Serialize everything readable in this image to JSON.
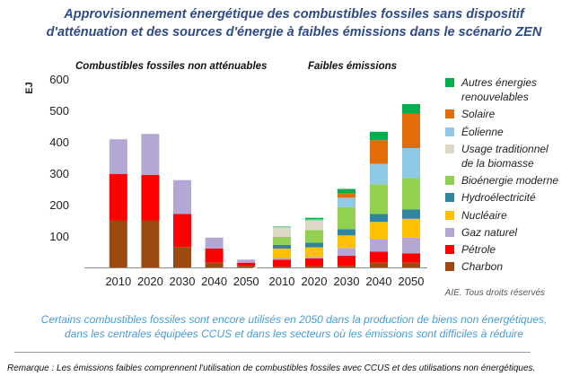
{
  "title": "Approvisionnement énergétique des combustibles fossiles sans dispositif d'atténuation et des sources d'énergie à faibles émissions dans le scénario ZEN",
  "source": "AIE. Tous droits réservés",
  "caption": "Certains combustibles fossiles sont encore utilisés en 2050 dans la production de biens non énergétiques, dans les centrales équipées CCUS et dans les secteurs où les émissions sont difficiles à réduire",
  "note": "Remarque : Les émissions faibles comprennent l'utilisation de combustibles fossiles avec CCUS et des utilisations non énergétiques.",
  "legend": [
    {
      "label": "Autres énergies renouvelables",
      "color": "#00b050"
    },
    {
      "label": "Solaire",
      "color": "#e36c0a"
    },
    {
      "label": "Éolienne",
      "color": "#8ecae6"
    },
    {
      "label": "Usage traditionnel de la biomasse",
      "color": "#ddd9c4"
    },
    {
      "label": "Bioénergie moderne",
      "color": "#92d050"
    },
    {
      "label": "Hydroélectricité",
      "color": "#31859c"
    },
    {
      "label": "Nucléaire",
      "color": "#ffc000"
    },
    {
      "label": "Gaz naturel",
      "color": "#b4a7d6"
    },
    {
      "label": "Pétrole",
      "color": "#ff0000"
    },
    {
      "label": "Charbon",
      "color": "#9c4a10"
    }
  ],
  "chart_data": {
    "type": "bar",
    "stacked": true,
    "ylabel": "EJ",
    "ylim": [
      0,
      600
    ],
    "yticks": [
      100,
      200,
      300,
      400,
      500,
      600
    ],
    "grid": false,
    "legend_position": "right",
    "panels": [
      {
        "title": "Combustibles fossiles non atténuables",
        "categories": [
          "2010",
          "2020",
          "2030",
          "2040",
          "2050"
        ],
        "series": [
          {
            "name": "Charbon",
            "values": [
              150,
              150,
              65,
              15,
              5
            ]
          },
          {
            "name": "Pétrole",
            "values": [
              148,
              145,
              105,
              45,
              10
            ]
          },
          {
            "name": "Gaz naturel",
            "values": [
              110,
              130,
              108,
              35,
              10
            ]
          }
        ]
      },
      {
        "title": "Faibles émissions",
        "categories": [
          "2010",
          "2020",
          "2030",
          "2040",
          "2050"
        ],
        "series": [
          {
            "name": "Charbon",
            "values": [
              3,
              4,
              5,
              15,
              15
            ]
          },
          {
            "name": "Pétrole",
            "values": [
              22,
              25,
              32,
              35,
              30
            ]
          },
          {
            "name": "Gaz naturel",
            "values": [
              5,
              5,
              25,
              40,
              50
            ]
          },
          {
            "name": "Nucléaire",
            "values": [
              30,
              30,
              40,
              55,
              60
            ]
          },
          {
            "name": "Hydroélectricité",
            "values": [
              12,
              15,
              20,
              25,
              30
            ]
          },
          {
            "name": "Bioénergie moderne",
            "values": [
              25,
              40,
              70,
              95,
              100
            ]
          },
          {
            "name": "Usage traditionnel de la biomasse",
            "values": [
              30,
              30,
              0,
              0,
              0
            ]
          },
          {
            "name": "Éolienne",
            "values": [
              1,
              3,
              30,
              65,
              95
            ]
          },
          {
            "name": "Solaire",
            "values": [
              0,
              2,
              15,
              75,
              110
            ]
          },
          {
            "name": "Autres énergies renouvelables",
            "values": [
              2,
              4,
              13,
              27,
              30
            ]
          }
        ]
      }
    ]
  }
}
